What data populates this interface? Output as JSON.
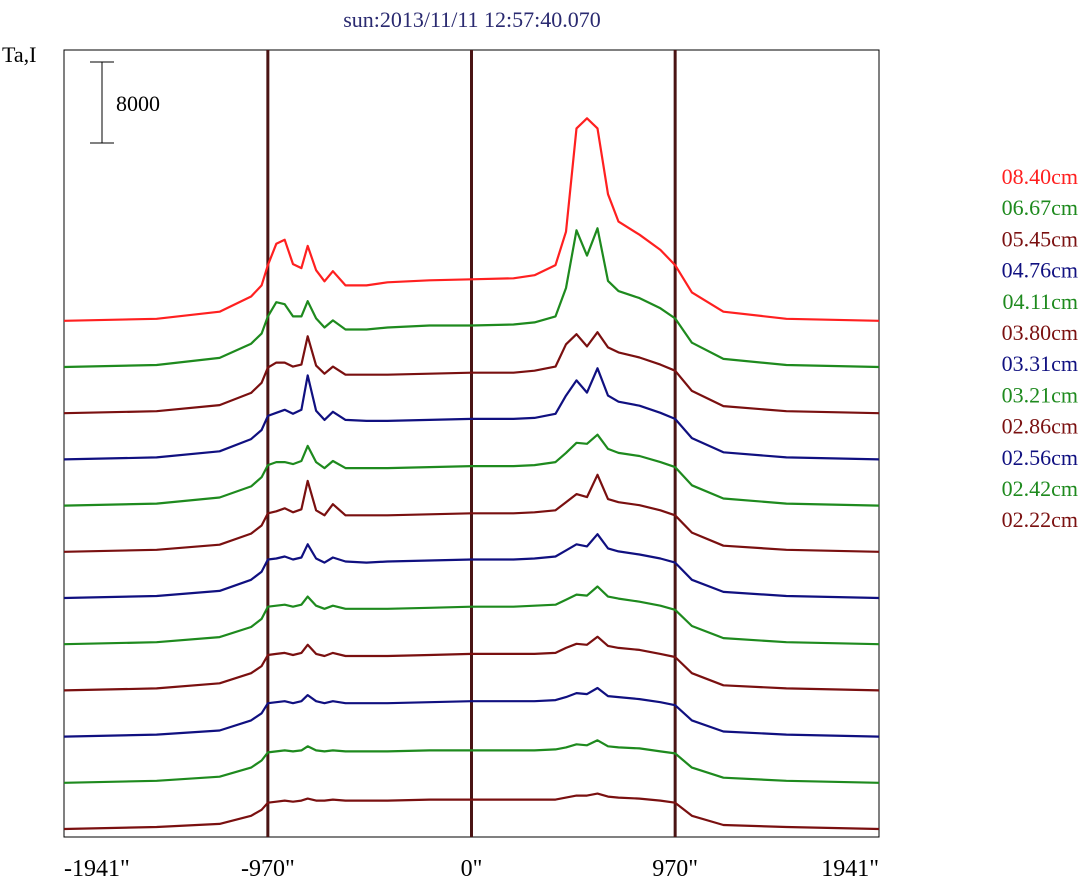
{
  "chart_data": {
    "type": "line",
    "title": "sun:2013/11/11 12:57:40.070",
    "ylabel": "Ta,I",
    "scale_bar_label": "8000",
    "xlim": [
      -1941,
      1941
    ],
    "x_ticks": [
      {
        "value": -1941,
        "label": "-1941\""
      },
      {
        "value": -970,
        "label": "-970\""
      },
      {
        "value": 0,
        "label": "0\""
      },
      {
        "value": 970,
        "label": "970\""
      },
      {
        "value": 1941,
        "label": "1941\""
      }
    ],
    "vertical_lines": [
      -970,
      0,
      970
    ],
    "x": [
      -1941,
      -1500,
      -1200,
      -1050,
      -1000,
      -970,
      -930,
      -890,
      -850,
      -810,
      -780,
      -740,
      -700,
      -660,
      -600,
      -500,
      -400,
      -200,
      0,
      200,
      300,
      400,
      450,
      500,
      550,
      600,
      650,
      700,
      800,
      900,
      970,
      1050,
      1200,
      1500,
      1941
    ],
    "series": [
      {
        "name": "08.40cm",
        "color": "#ff2020",
        "values": [
          0,
          200,
          900,
          2400,
          3500,
          5500,
          7600,
          8000,
          5600,
          5200,
          7400,
          5000,
          3900,
          4900,
          3500,
          3500,
          3800,
          4000,
          4100,
          4200,
          4500,
          5500,
          8800,
          19000,
          20000,
          19000,
          12500,
          9800,
          8500,
          7000,
          5500,
          2800,
          900,
          200,
          0
        ]
      },
      {
        "name": "06.67cm",
        "color": "#1e8a1e",
        "values": [
          0,
          200,
          900,
          2300,
          3300,
          5000,
          6400,
          6200,
          5000,
          5000,
          6500,
          4800,
          3900,
          4600,
          3700,
          3700,
          3900,
          4100,
          4100,
          4200,
          4400,
          5000,
          7800,
          13500,
          11000,
          13700,
          8500,
          7500,
          6800,
          5800,
          4800,
          2400,
          800,
          200,
          0
        ]
      },
      {
        "name": "05.45cm",
        "color": "#7a1010",
        "values": [
          0,
          200,
          800,
          2000,
          3000,
          4500,
          5000,
          5000,
          4600,
          4800,
          7600,
          4700,
          3900,
          4600,
          3800,
          3800,
          3800,
          3900,
          4000,
          4000,
          4200,
          4600,
          6800,
          7800,
          6600,
          8000,
          6500,
          6000,
          5500,
          4800,
          4200,
          2200,
          700,
          200,
          0
        ]
      },
      {
        "name": "04.76cm",
        "color": "#101080",
        "values": [
          0,
          200,
          800,
          2000,
          2900,
          4300,
          4600,
          4900,
          4500,
          4900,
          8300,
          4800,
          3900,
          4700,
          3900,
          3800,
          3800,
          3900,
          4000,
          4000,
          4100,
          4500,
          6300,
          7800,
          6600,
          9000,
          6300,
          5700,
          5300,
          4600,
          4000,
          2100,
          700,
          200,
          0
        ]
      },
      {
        "name": "04.11cm",
        "color": "#1e8a1e",
        "values": [
          0,
          200,
          800,
          1900,
          2800,
          4000,
          4300,
          4300,
          4100,
          4400,
          5900,
          4300,
          3700,
          4400,
          3700,
          3700,
          3700,
          3800,
          3900,
          3900,
          4000,
          4300,
          5200,
          6200,
          6100,
          7000,
          5600,
          5200,
          4900,
          4300,
          3800,
          2000,
          700,
          200,
          0
        ]
      },
      {
        "name": "03.80cm",
        "color": "#7a1010",
        "values": [
          0,
          200,
          700,
          1800,
          2600,
          3800,
          4000,
          4300,
          3900,
          4200,
          7000,
          4100,
          3600,
          4700,
          3600,
          3600,
          3600,
          3700,
          3800,
          3800,
          3900,
          4100,
          4900,
          5700,
          5400,
          7600,
          5200,
          4900,
          4600,
          4100,
          3600,
          1900,
          600,
          200,
          0
        ]
      },
      {
        "name": "03.31cm",
        "color": "#101080",
        "values": [
          0,
          200,
          700,
          1800,
          2600,
          3800,
          3900,
          4100,
          3800,
          4000,
          5300,
          3900,
          3500,
          4000,
          3600,
          3500,
          3600,
          3700,
          3800,
          3800,
          3900,
          4100,
          4700,
          5300,
          5100,
          6300,
          4900,
          4600,
          4300,
          3900,
          3500,
          1800,
          600,
          200,
          0
        ]
      },
      {
        "name": "03.21cm",
        "color": "#1e8a1e",
        "values": [
          0,
          200,
          700,
          1700,
          2500,
          3700,
          3800,
          3900,
          3700,
          3900,
          4700,
          3800,
          3500,
          3800,
          3500,
          3500,
          3500,
          3600,
          3700,
          3700,
          3800,
          3900,
          4400,
          4900,
          4800,
          5700,
          4700,
          4500,
          4200,
          3800,
          3400,
          1800,
          600,
          200,
          0
        ]
      },
      {
        "name": "02.86cm",
        "color": "#7a1010",
        "values": [
          0,
          200,
          700,
          1700,
          2400,
          3500,
          3600,
          3700,
          3500,
          3700,
          4500,
          3600,
          3400,
          3700,
          3400,
          3400,
          3400,
          3500,
          3600,
          3600,
          3600,
          3700,
          4200,
          4600,
          4500,
          5300,
          4400,
          4200,
          4000,
          3600,
          3300,
          1700,
          500,
          200,
          0
        ]
      },
      {
        "name": "02.56cm",
        "color": "#101080",
        "values": [
          0,
          200,
          600,
          1600,
          2300,
          3300,
          3400,
          3500,
          3300,
          3500,
          4100,
          3500,
          3300,
          3500,
          3300,
          3300,
          3300,
          3400,
          3500,
          3500,
          3500,
          3600,
          3900,
          4300,
          4200,
          4800,
          4000,
          3900,
          3700,
          3400,
          3100,
          1600,
          500,
          200,
          0
        ]
      },
      {
        "name": "02.42cm",
        "color": "#1e8a1e",
        "values": [
          0,
          200,
          600,
          1500,
          2200,
          3000,
          3100,
          3200,
          3100,
          3200,
          3600,
          3200,
          3100,
          3200,
          3100,
          3100,
          3100,
          3200,
          3200,
          3200,
          3200,
          3300,
          3500,
          3800,
          3700,
          4200,
          3600,
          3500,
          3400,
          3100,
          2900,
          1500,
          500,
          200,
          0
        ]
      },
      {
        "name": "02.22cm",
        "color": "#7a1010",
        "values": [
          0,
          200,
          500,
          1300,
          1900,
          2600,
          2700,
          2800,
          2700,
          2800,
          3000,
          2800,
          2800,
          2900,
          2800,
          2800,
          2800,
          2900,
          2900,
          2900,
          2900,
          2900,
          3100,
          3300,
          3300,
          3500,
          3200,
          3100,
          3000,
          2800,
          2600,
          1300,
          400,
          200,
          0
        ]
      }
    ]
  }
}
